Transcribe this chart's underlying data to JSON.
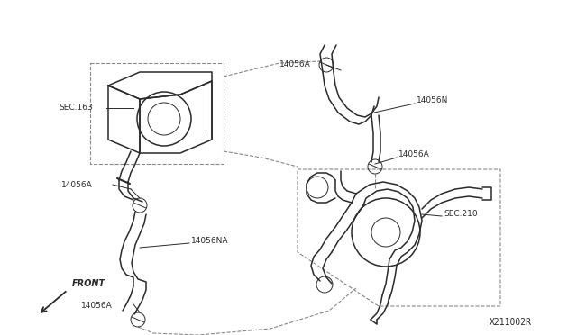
{
  "bg_color": "#ffffff",
  "line_color": "#2a2a2a",
  "figsize": [
    6.4,
    3.72
  ],
  "dpi": 100,
  "part_number": "X211002R",
  "labels": {
    "sec163": "SEC.163",
    "sec210": "SEC.210",
    "l1": "14056A",
    "l2": "14056NA",
    "l3": "14056A",
    "l4": "14056A",
    "l5": "14056A",
    "l6": "14056N",
    "front": "FRONT"
  }
}
